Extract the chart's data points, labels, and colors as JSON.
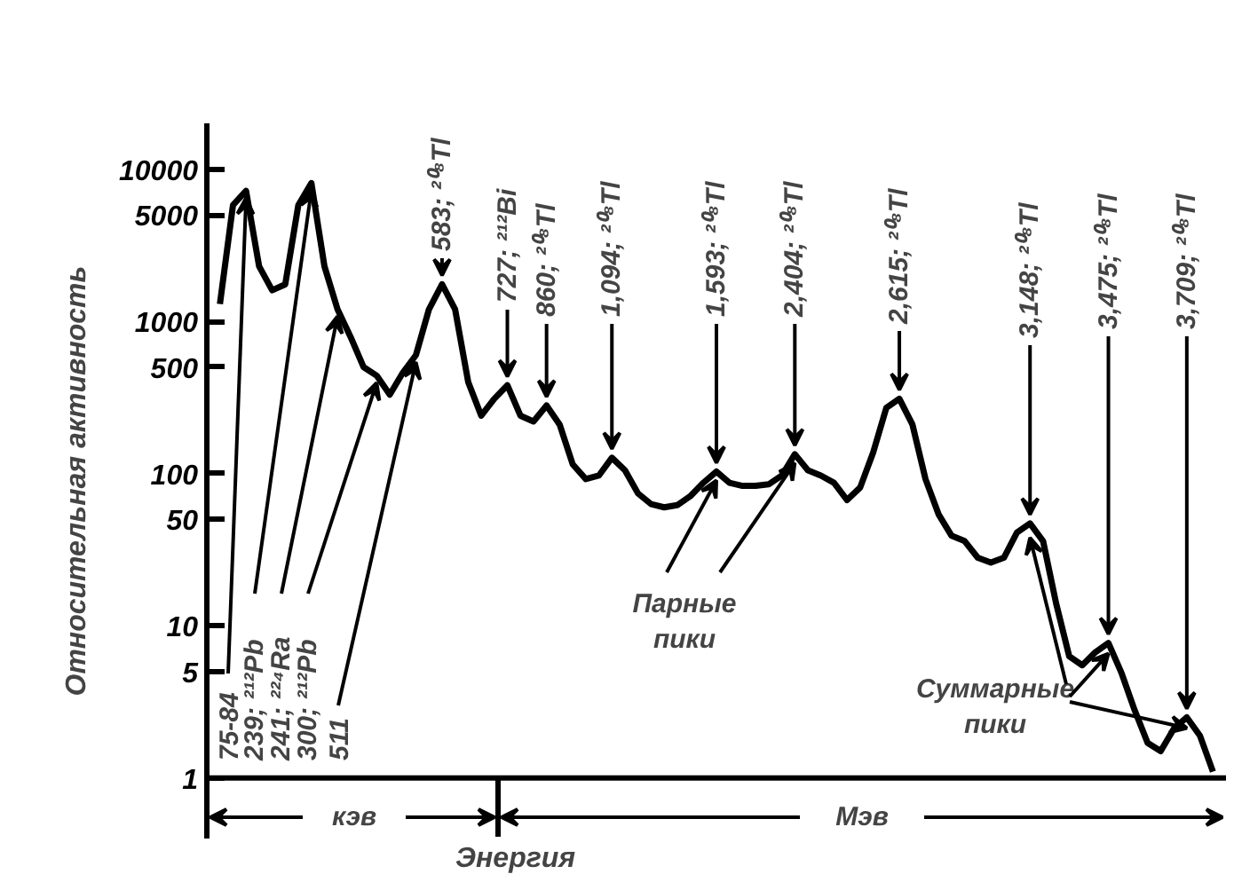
{
  "chart_data": {
    "type": "line",
    "xlabel": "Энергия",
    "ylabel": "Относительная активность",
    "categories": [
      null,
      null,
      null,
      null,
      null,
      null,
      null,
      null,
      null,
      null,
      null,
      null,
      null,
      null,
      null,
      null,
      null,
      null,
      null,
      null,
      null,
      null,
      null,
      null,
      null,
      null,
      null,
      null,
      null,
      null,
      null,
      null,
      null,
      null,
      null,
      null,
      null,
      null,
      null,
      null,
      null,
      null,
      null,
      null,
      null,
      null,
      null,
      null,
      null,
      null,
      null,
      null,
      null,
      null,
      null,
      null,
      null,
      null,
      null,
      null,
      null,
      null,
      null,
      null,
      null,
      null,
      null,
      null,
      null,
      null,
      null,
      null,
      null,
      null,
      null,
      null,
      null
    ],
    "values": [
      1300,
      5800,
      7200,
      2300,
      1600,
      1750,
      5800,
      8100,
      2300,
      1200,
      790,
      500,
      440,
      330,
      460,
      600,
      1200,
      1750,
      1200,
      400,
      240,
      310,
      380,
      240,
      220,
      280,
      210,
      115,
      92,
      97,
      127,
      105,
      74,
      63,
      60,
      62,
      71,
      87,
      103,
      87,
      83,
      83,
      85,
      97,
      134,
      105,
      97,
      87,
      67,
      81,
      138,
      270,
      310,
      210,
      92,
      54,
      39,
      36,
      28,
      26,
      28,
      41,
      47,
      36,
      14,
      6.3,
      5.5,
      6.7,
      7.7,
      4.9,
      2.8,
      1.7,
      1.5,
      2.1,
      2.5,
      1.9,
      1.1
    ],
    "color": "#000000",
    "ylim": [
      0.4,
      20000
    ],
    "ref_lines": [
      {
        "axis": "y",
        "value": 1,
        "color": "#000000"
      }
    ],
    "yticks": [
      1,
      5,
      10,
      50,
      100,
      500,
      1000,
      5000,
      10000
    ],
    "log": true,
    "grid": false,
    "tick_labels": "y",
    "line_style": "solid",
    "marker": "none",
    "annotations": [
      "75-84",
      "239; ²¹²Pb",
      "241; ²²⁴Ra",
      "300; ²¹²Pb",
      "511",
      "583; ²⁰⁸Tl",
      "727; ²¹²Bi",
      "860; ²⁰⁸Tl",
      "1,094; ²⁰⁸Tl",
      "1,593; ²⁰⁸Tl",
      "2,404; ²⁰⁸Tl",
      "2,615; ²⁰⁸Tl",
      "3,148; ²⁰⁸Tl",
      "3,475; ²⁰⁸Tl",
      "3,709; ²⁰⁸Tl",
      "Парные пики",
      "Суммарные пики",
      "кэв",
      "Мэв"
    ]
  }
}
